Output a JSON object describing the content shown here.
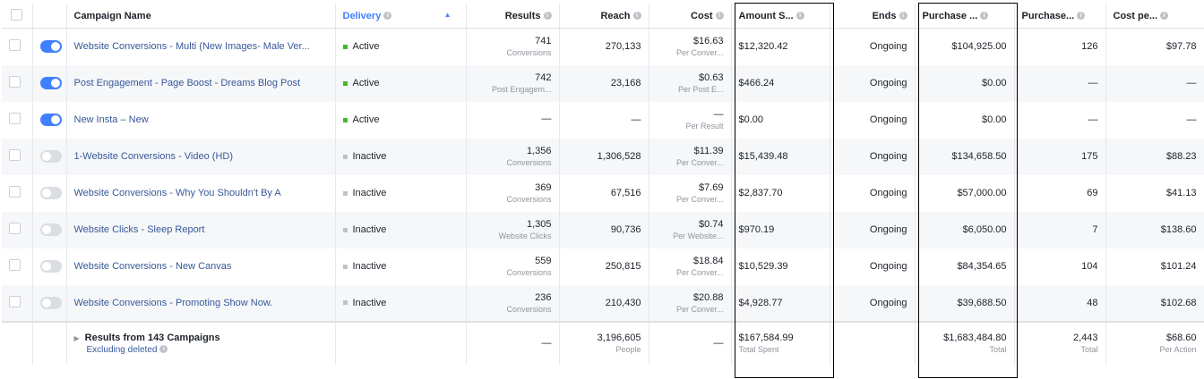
{
  "columns": [
    {
      "key": "name",
      "label": "Campaign Name",
      "info": false
    },
    {
      "key": "delivery",
      "label": "Delivery",
      "info": true
    },
    {
      "key": "results",
      "label": "Results",
      "info": true
    },
    {
      "key": "reach",
      "label": "Reach",
      "info": true
    },
    {
      "key": "cost",
      "label": "Cost",
      "info": true
    },
    {
      "key": "amount",
      "label": "Amount S...",
      "info": true
    },
    {
      "key": "ends",
      "label": "Ends",
      "info": true
    },
    {
      "key": "purchase_value",
      "label": "Purchase ...",
      "info": true
    },
    {
      "key": "purchases",
      "label": "Purchase...",
      "info": true
    },
    {
      "key": "cost_per",
      "label": "Cost pe...",
      "info": true
    }
  ],
  "sort_indicator": "▲",
  "top_cut_text": {
    "results": "Conversions",
    "cost": "Per Conver..."
  },
  "rows": [
    {
      "toggle": "on",
      "name": "Website Conversions - Multi (New Images- Male Ver...",
      "delivery": "Active",
      "results": "741",
      "results_sub": "Conversions",
      "reach": "270,133",
      "cost": "$16.63",
      "cost_sub": "Per Conver...",
      "amount": "$12,320.42",
      "ends": "Ongoing",
      "purchase_value": "$104,925.00",
      "purchases": "126",
      "cost_per": "$97.78"
    },
    {
      "toggle": "on",
      "name": "Post Engagement - Page Boost - Dreams Blog Post",
      "delivery": "Active",
      "results": "742",
      "results_sub": "Post Engagem...",
      "reach": "23,168",
      "cost": "$0.63",
      "cost_sub": "Per Post E...",
      "amount": "$466.24",
      "ends": "Ongoing",
      "purchase_value": "$0.00",
      "purchases": "—",
      "cost_per": "—"
    },
    {
      "toggle": "on",
      "name": "New Insta – New",
      "delivery": "Active",
      "results": "—",
      "results_sub": "",
      "reach": "—",
      "cost": "—",
      "cost_sub": "Per Result",
      "amount": "$0.00",
      "ends": "Ongoing",
      "purchase_value": "$0.00",
      "purchases": "—",
      "cost_per": "—"
    },
    {
      "toggle": "off",
      "name": "1-Website Conversions - Video (HD)",
      "delivery": "Inactive",
      "results": "1,356",
      "results_sub": "Conversions",
      "reach": "1,306,528",
      "cost": "$11.39",
      "cost_sub": "Per Conver...",
      "amount": "$15,439.48",
      "ends": "Ongoing",
      "purchase_value": "$134,658.50",
      "purchases": "175",
      "cost_per": "$88.23"
    },
    {
      "toggle": "off",
      "name": "Website Conversions - Why You Shouldn't By A",
      "delivery": "Inactive",
      "results": "369",
      "results_sub": "Conversions",
      "reach": "67,516",
      "cost": "$7.69",
      "cost_sub": "Per Conver...",
      "amount": "$2,837.70",
      "ends": "Ongoing",
      "purchase_value": "$57,000.00",
      "purchases": "69",
      "cost_per": "$41.13"
    },
    {
      "toggle": "off",
      "name": "Website Clicks -          Sleep Report",
      "delivery": "Inactive",
      "results": "1,305",
      "results_sub": "Website Clicks",
      "reach": "90,736",
      "cost": "$0.74",
      "cost_sub": "Per Website...",
      "amount": "$970.19",
      "ends": "Ongoing",
      "purchase_value": "$6,050.00",
      "purchases": "7",
      "cost_per": "$138.60"
    },
    {
      "toggle": "off",
      "name": "Website Conversions - New Canvas",
      "delivery": "Inactive",
      "results": "559",
      "results_sub": "Conversions",
      "reach": "250,815",
      "cost": "$18.84",
      "cost_sub": "Per Conver...",
      "amount": "$10,529.39",
      "ends": "Ongoing",
      "purchase_value": "$84,354.65",
      "purchases": "104",
      "cost_per": "$101.24"
    },
    {
      "toggle": "off",
      "name": "Website Conversions - Promoting Show Now.",
      "delivery": "Inactive",
      "results": "236",
      "results_sub": "Conversions",
      "reach": "210,430",
      "cost": "$20.88",
      "cost_sub": "Per Conver...",
      "amount": "$4,928.77",
      "ends": "Ongoing",
      "purchase_value": "$39,688.50",
      "purchases": "48",
      "cost_per": "$102.68"
    }
  ],
  "footer": {
    "title": "Results from 143 Campaigns",
    "subtitle": "Excluding deleted",
    "results": "—",
    "reach": "3,196,605",
    "reach_sub": "People",
    "cost": "—",
    "amount": "$167,584.99",
    "amount_sub": "Total Spent",
    "purchase_value": "$1,683,484.80",
    "purchase_value_sub": "Total",
    "purchases": "2,443",
    "purchases_sub": "Total",
    "cost_per": "$68.60",
    "cost_per_sub": "Per Action"
  },
  "colors": {
    "link": "#365899",
    "toggle_on": "#4080ff",
    "active_dot": "#42b72a",
    "inactive_dot": "#bec2c9"
  }
}
